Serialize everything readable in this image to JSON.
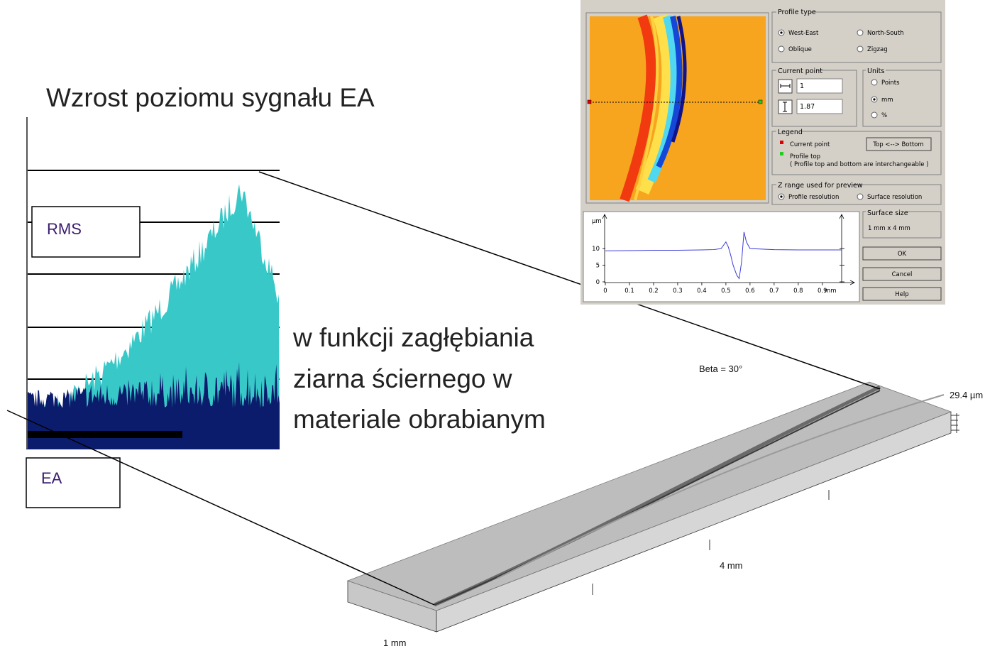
{
  "slide": {
    "title": "Wzrost poziomu sygnału EA",
    "text_lines": [
      "w funkcji zagłębiania",
      "ziarna ściernego w",
      "materiale obrabianym"
    ],
    "rms_label": "RMS",
    "ea_label": "EA"
  },
  "surface_3d": {
    "beta": "Beta = 30°",
    "height": "29.4 µm",
    "length": "4 mm",
    "width": "1 mm"
  },
  "dialog": {
    "profile_type": {
      "title": "Profile type",
      "options": [
        {
          "label": "West-East",
          "checked": true
        },
        {
          "label": "North-South",
          "checked": false
        },
        {
          "label": "Oblique",
          "checked": false
        },
        {
          "label": "Zigzag",
          "checked": false
        }
      ]
    },
    "current_point": {
      "title": "Current point",
      "x": "1",
      "y": "1.87"
    },
    "units": {
      "title": "Units",
      "options": [
        {
          "label": "Points",
          "checked": false
        },
        {
          "label": "mm",
          "checked": true
        },
        {
          "label": "%",
          "checked": false
        }
      ]
    },
    "legend": {
      "title": "Legend",
      "current_point": "Current point",
      "profile_top": "Profile top",
      "note": "( Profile top and bottom are interchangeable )",
      "button": "Top <--> Bottom"
    },
    "z_range": {
      "title": "Z range used for preview",
      "options": [
        {
          "label": "Profile resolution",
          "checked": true
        },
        {
          "label": "Surface resolution",
          "checked": false
        }
      ]
    },
    "surface_size": {
      "title": "Surface size",
      "value": "1 mm x 4 mm"
    },
    "buttons": [
      "OK",
      "Cancel",
      "Help"
    ]
  },
  "chart_data": {
    "type": "line",
    "y_unit": "µm",
    "x_unit": "mm",
    "xlim": [
      0,
      0.98
    ],
    "ylim": [
      0,
      19
    ],
    "xticks": [
      0,
      0.1,
      0.2,
      0.3,
      0.4,
      0.5,
      0.6,
      0.7,
      0.8,
      0.9
    ],
    "yticks": [
      0,
      5,
      10
    ],
    "color": "#3c3cd8",
    "x": [
      0,
      0.1,
      0.2,
      0.3,
      0.4,
      0.45,
      0.48,
      0.5,
      0.51,
      0.52,
      0.53,
      0.545,
      0.555,
      0.565,
      0.575,
      0.585,
      0.6,
      0.7,
      0.8,
      0.9,
      0.98
    ],
    "values": [
      9.3,
      9.4,
      9.5,
      9.5,
      9.6,
      9.7,
      10,
      12,
      10.5,
      8,
      5,
      2,
      1,
      6,
      15,
      12,
      10,
      9.7,
      9.6,
      9.6,
      9.6
    ]
  }
}
